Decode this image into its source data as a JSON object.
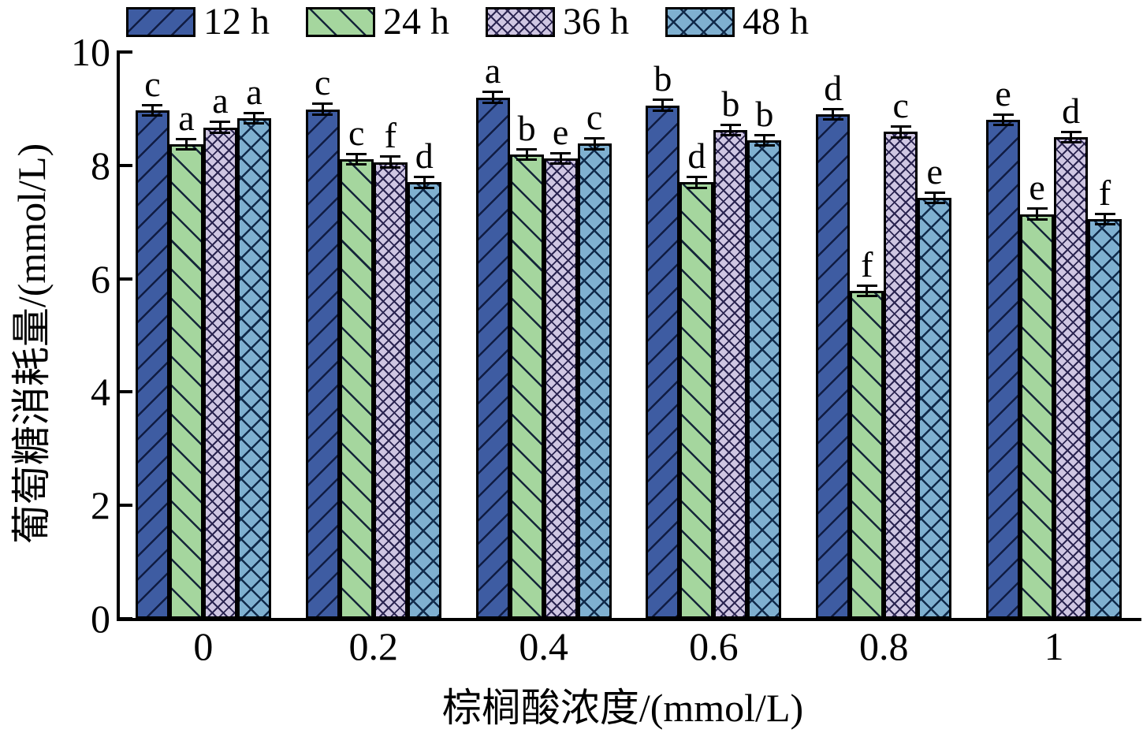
{
  "chart_data": {
    "type": "bar",
    "title": "",
    "xlabel": "棕榈酸浓度/(mmol/L)",
    "ylabel": "葡萄糖消耗量/(mmol/L)",
    "categories": [
      "0",
      "0.2",
      "0.4",
      "0.6",
      "0.8",
      "1"
    ],
    "ylim": [
      0,
      10
    ],
    "yticks": [
      0,
      2,
      4,
      6,
      8,
      10
    ],
    "grid": false,
    "legend_position": "top",
    "error_bar": 0.1,
    "series": [
      {
        "name": "12 h",
        "color": "#3E5CA2",
        "hatch": "diagonal-up",
        "hatch_color": "#101C42",
        "values": [
          8.97,
          8.99,
          9.2,
          9.06,
          8.9,
          8.8
        ],
        "letters": [
          "c",
          "c",
          "a",
          "b",
          "d",
          "e"
        ]
      },
      {
        "name": "24 h",
        "color": "#A5D69E",
        "hatch": "diagonal-down",
        "hatch_color": "#15263A",
        "values": [
          8.37,
          8.11,
          8.19,
          7.7,
          5.79,
          7.14
        ],
        "letters": [
          "a",
          "c",
          "b",
          "d",
          "f",
          "e"
        ]
      },
      {
        "name": "36 h",
        "color": "#CFC6E2",
        "hatch": "crosshatch-dense",
        "hatch_color": "#2A2450",
        "values": [
          8.67,
          8.06,
          8.12,
          8.62,
          8.59,
          8.5
        ],
        "letters": [
          "a",
          "f",
          "e",
          "b",
          "c",
          "d"
        ]
      },
      {
        "name": "48 h",
        "color": "#7FB0D0",
        "hatch": "crosshatch",
        "hatch_color": "#102A4A",
        "values": [
          8.83,
          7.7,
          8.38,
          8.44,
          7.43,
          7.05
        ],
        "letters": [
          "a",
          "d",
          "c",
          "b",
          "e",
          "f"
        ]
      }
    ],
    "colors": {
      "axis": "#000000",
      "bar_border": "#000000",
      "error_bar": "#000000",
      "background": "#FFFFFF"
    }
  }
}
